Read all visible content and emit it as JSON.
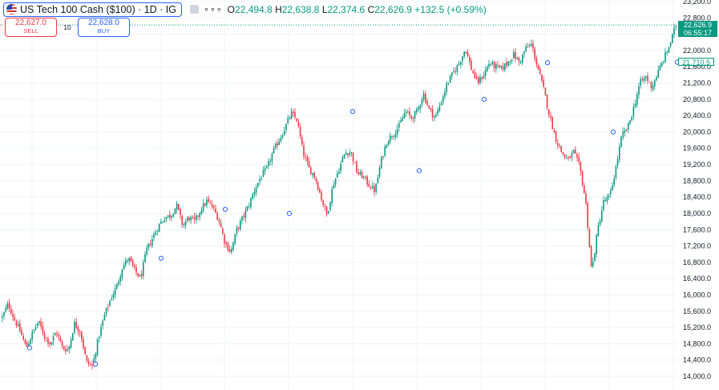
{
  "header": {
    "title": "US Tech 100 Cash ($100) · 1D · IG",
    "ohlc": {
      "o_label": "O",
      "o": "22,494.8",
      "h_label": "H",
      "h": "22,638.8",
      "l_label": "L",
      "l": "22,374.6",
      "c_label": "C",
      "c": "22,626.9",
      "change": "+132.5 (+0.59%)"
    },
    "more": "∘∘∘"
  },
  "trade": {
    "sell_price": "22,627.0",
    "sell_label": "SELL",
    "quantity": "10",
    "buy_price": "22,628.0",
    "buy_label": "BUY"
  },
  "price_tags": {
    "last_price": "22,626.9",
    "countdown": "06:55:17",
    "marker_price": "21,710.5"
  },
  "colors": {
    "up": "#089981",
    "down": "#f23645",
    "grid": "#f0f3fa",
    "accent": "#2962ff"
  },
  "chart_data": {
    "type": "candlestick",
    "title": "",
    "xlabel": "",
    "ylabel": "",
    "ylim": [
      13900,
      23200
    ],
    "y_ticks": [
      "14,000.0",
      "14,400.0",
      "14,800.0",
      "15,200.0",
      "15,600.0",
      "16,000.0",
      "16,400.0",
      "16,800.0",
      "17,200.0",
      "17,600.0",
      "18,000.0",
      "18,400.0",
      "18,800.0",
      "19,200.0",
      "19,600.0",
      "20,000.0",
      "20,400.0",
      "20,800.0",
      "21,200.0",
      "21,600.0",
      "22,000.0",
      "22,400.0",
      "22,800.0",
      "23,200.0"
    ],
    "current_price": 22626.9,
    "price_path": [
      15450,
      15780,
      15400,
      15100,
      14700,
      15050,
      15350,
      15000,
      14800,
      15100,
      14700,
      14650,
      15300,
      15100,
      14350,
      14250,
      14950,
      15500,
      15900,
      16200,
      16700,
      16900,
      16600,
      16400,
      17100,
      17400,
      17700,
      17900,
      17950,
      18200,
      17700,
      17900,
      17800,
      18100,
      18300,
      18150,
      17850,
      17300,
      17050,
      17600,
      17900,
      18200,
      18600,
      18900,
      19100,
      19500,
      19800,
      20100,
      20450,
      20300,
      19500,
      19100,
      18900,
      18400,
      17950,
      18700,
      19100,
      19500,
      19500,
      19000,
      18900,
      18700,
      18550,
      19300,
      19800,
      19950,
      20150,
      20500,
      20350,
      20500,
      20950,
      20550,
      20350,
      20750,
      21200,
      21450,
      21700,
      22050,
      21550,
      21200,
      21400,
      21700,
      21600,
      21550,
      21700,
      21900,
      21700,
      22050,
      22150,
      21600,
      21050,
      20400,
      19850,
      19500,
      19300,
      19500,
      19150,
      18300,
      16550,
      17600,
      18300,
      18400,
      19100,
      19900,
      20100,
      20600,
      21200,
      21350,
      21100,
      21450,
      21800,
      22150,
      22626.9
    ],
    "markers": [
      {
        "x": 37,
        "price": 14700
      },
      {
        "x": 119,
        "price": 14300
      },
      {
        "x": 201,
        "price": 16900
      },
      {
        "x": 281,
        "price": 18100
      },
      {
        "x": 361,
        "price": 18000
      },
      {
        "x": 440,
        "price": 20500
      },
      {
        "x": 523,
        "price": 19050
      },
      {
        "x": 604,
        "price": 20800
      },
      {
        "x": 683,
        "price": 21700
      },
      {
        "x": 765,
        "price": 20000
      },
      {
        "x": 845,
        "price": 21710
      }
    ]
  }
}
